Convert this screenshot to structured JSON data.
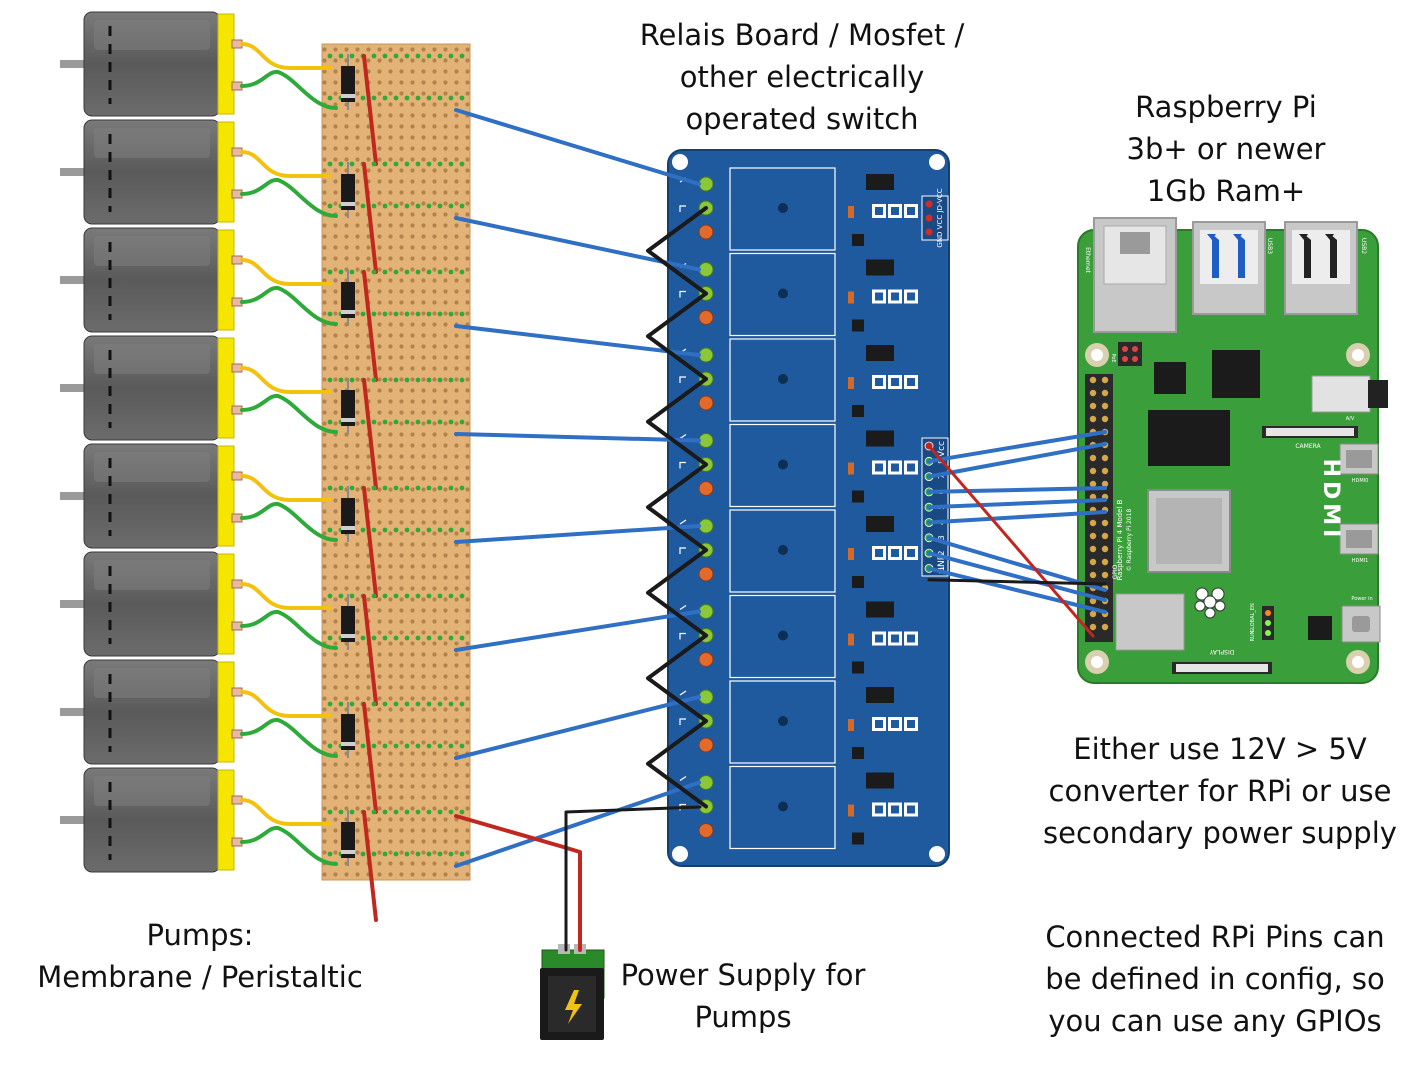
{
  "labels": {
    "relay": [
      "Relais Board / Mosfet /",
      "other electrically",
      "operated switch"
    ],
    "pi": [
      "Raspberry Pi",
      "3b+ or newer",
      "1Gb Ram+"
    ],
    "converter": [
      "Either use 12V > 5V",
      "converter for RPi or use",
      "secondary power supply"
    ],
    "pins": [
      "Connected RPi Pins can",
      "be defined in config, so",
      "you can use any GPIOs"
    ],
    "pumps": [
      "Pumps:",
      "Membrane / Peristaltic"
    ],
    "power": [
      "Power Supply for",
      "Pumps"
    ]
  },
  "pi_board": {
    "model_lines": [
      "Raspberry Pi 4 Model B",
      "© Raspberry Pi 2018"
    ],
    "hdmi": "HDMI",
    "gpio": "GPIO",
    "ethernet": "Ethernet",
    "usb3": "USB3",
    "usb2": "USB2",
    "power_in": "Power in",
    "camera": "CAMERA",
    "display": "DISPLAY",
    "audio": "A/V",
    "hdmi0": "HDMI0",
    "hdmi1": "HDMI1",
    "poe": "PoE",
    "run": "RUN",
    "global_en": "GLOBAL_EN"
  },
  "relay_board": {
    "power_header": "GND VCC JD-VCC",
    "input_header": "8 7 6 5 4 3 2 1",
    "vcc": "Vcc",
    "gnd": "GND",
    "relay_count": 8,
    "input_pins": [
      "8",
      "7",
      "6",
      "5",
      "4",
      "3",
      "2",
      "1"
    ]
  },
  "pumps": {
    "count": 8
  },
  "colors": {
    "relay_board": "#1f5a9e",
    "pi_board": "#3a9e3a",
    "stripboard": "#e3b277",
    "wire_signal": "#2f6fc4",
    "wire_power_pos": "#c0281f",
    "wire_gnd": "#1a1a1a",
    "wire_yellow": "#f2c20f",
    "wire_green": "#2eaa3a",
    "pump_body": "#5f5f5f",
    "pump_cap": "#f5e600",
    "connector": "#2a8a2a"
  }
}
